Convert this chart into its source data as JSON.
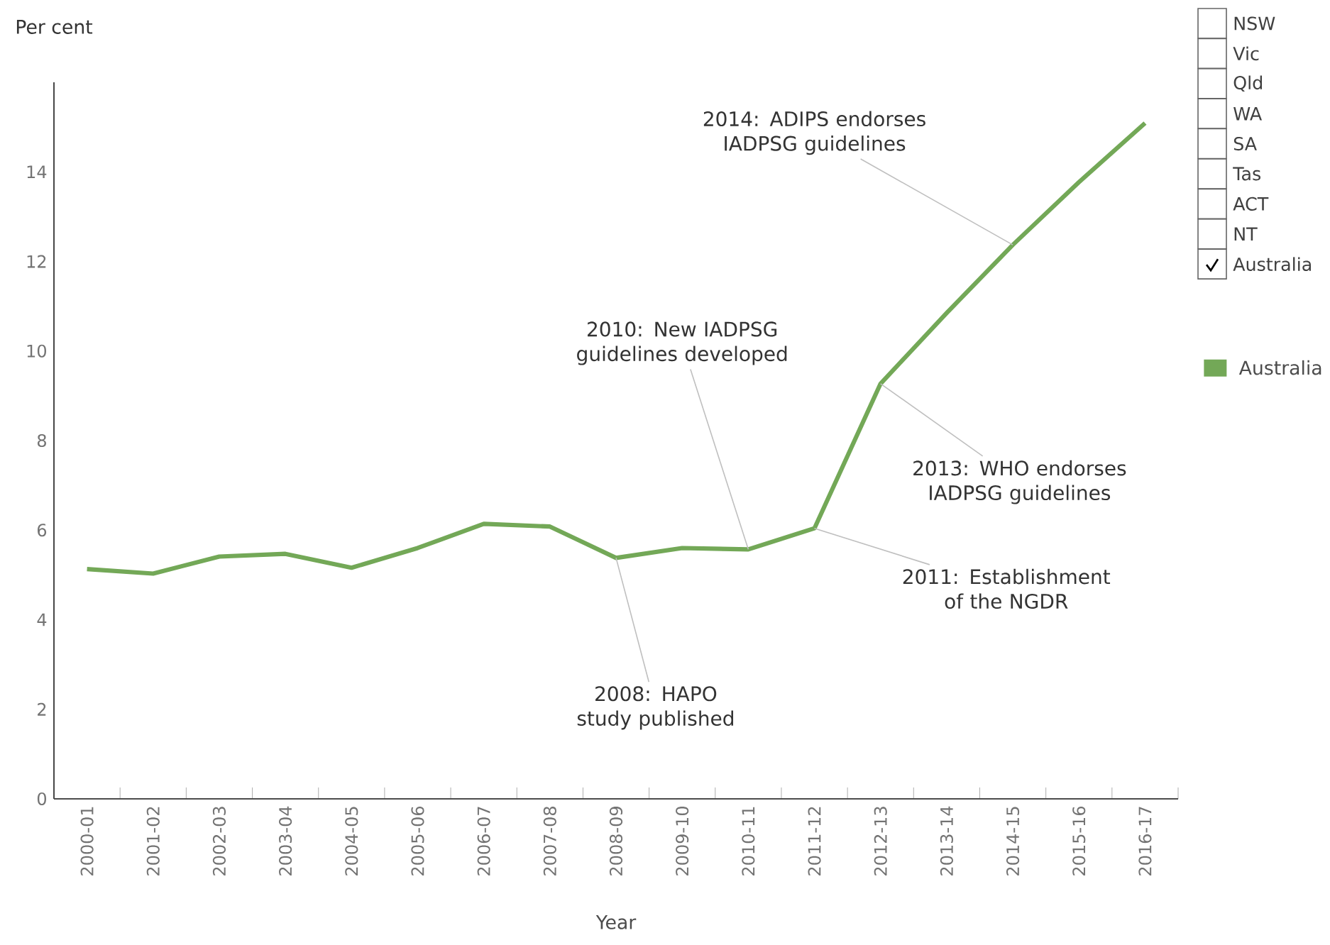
{
  "chart_data": {
    "type": "line",
    "ylabel": "Per cent",
    "xlabel": "Year",
    "categories": [
      "2000-01",
      "2001-02",
      "2002-03",
      "2003-04",
      "2004-05",
      "2005-06",
      "2006-07",
      "2007-08",
      "2008-09",
      "2009-10",
      "2010-11",
      "2011-12",
      "2012-13",
      "2013-14",
      "2014-15",
      "2015-16",
      "2016-17"
    ],
    "series": [
      {
        "name": "Australia",
        "color": "#73a857",
        "values": [
          5.13,
          5.03,
          5.41,
          5.47,
          5.16,
          5.6,
          6.14,
          6.08,
          5.38,
          5.6,
          5.57,
          6.04,
          9.27,
          10.85,
          12.37,
          13.77,
          15.09
        ]
      }
    ],
    "ylim": [
      0,
      16
    ],
    "yticks": [
      0,
      2,
      4,
      6,
      8,
      10,
      12,
      14
    ],
    "legend": "right",
    "annotations": [
      "NSW",
      "Vic",
      "Qld",
      "WA",
      "SA",
      "Tas",
      "ACT",
      "NT",
      "Australia",
      {
        "text": "2008: HAPO study published",
        "x": "2008-09",
        "y": 5.38
      },
      {
        "text": "2010: New IADPSG guidelines developed",
        "x": "2010-11",
        "y": 5.57
      },
      {
        "text": "2011: Establishment of the NGDR",
        "x": "2011-12",
        "y": 6.04
      },
      {
        "text": "2013: WHO endorses IADPSG guidelines",
        "x": "2012-13",
        "y": 9.27
      },
      {
        "text": "2014: ADIPS endorses IADPSG guidelines",
        "x": "2014-15",
        "y": 12.37
      }
    ]
  }
}
